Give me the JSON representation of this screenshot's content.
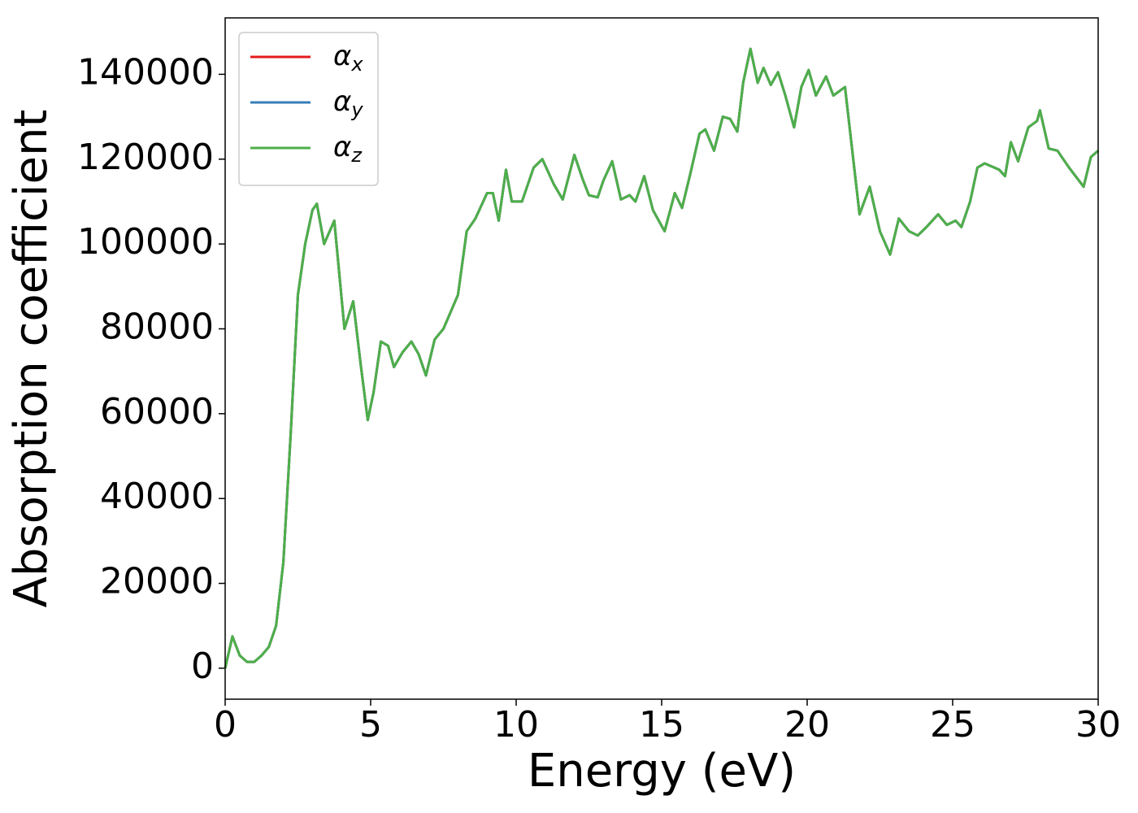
{
  "chart_data": {
    "type": "line",
    "xlabel": "Energy (eV)",
    "ylabel": "Absorption coefficient",
    "x": [
      0,
      0.25,
      0.5,
      0.75,
      1.0,
      1.25,
      1.5,
      1.75,
      2.0,
      2.25,
      2.5,
      2.75,
      3.0,
      3.15,
      3.4,
      3.75,
      4.1,
      4.4,
      4.65,
      4.9,
      5.1,
      5.35,
      5.6,
      5.8,
      6.1,
      6.4,
      6.65,
      6.9,
      7.2,
      7.5,
      7.75,
      8.0,
      8.3,
      8.6,
      9.0,
      9.2,
      9.4,
      9.65,
      9.85,
      10.2,
      10.6,
      10.9,
      11.3,
      11.6,
      12.0,
      12.3,
      12.5,
      12.8,
      13.0,
      13.3,
      13.6,
      13.9,
      14.1,
      14.4,
      14.7,
      15.1,
      15.45,
      15.7,
      16.0,
      16.3,
      16.5,
      16.8,
      17.1,
      17.35,
      17.6,
      17.8,
      18.05,
      18.3,
      18.5,
      18.75,
      19.0,
      19.25,
      19.55,
      19.8,
      20.05,
      20.3,
      20.65,
      20.9,
      21.3,
      21.5,
      21.8,
      22.15,
      22.5,
      22.85,
      23.15,
      23.5,
      23.8,
      24.1,
      24.5,
      24.8,
      25.1,
      25.3,
      25.6,
      25.85,
      26.1,
      26.6,
      26.8,
      27.0,
      27.25,
      27.6,
      27.9,
      28.0,
      28.3,
      28.6,
      29.0,
      29.5,
      29.75,
      30.0
    ],
    "series": [
      {
        "name": "αx",
        "color": "#e41a1c",
        "values": [
          0,
          7500,
          3000,
          1500,
          1500,
          3000,
          5000,
          10000,
          25000,
          55000,
          88000,
          100000,
          108000,
          109500,
          100000,
          105500,
          80000,
          86500,
          72000,
          58500,
          65000,
          77000,
          76000,
          71000,
          74500,
          77000,
          74000,
          69000,
          77500,
          80000,
          84000,
          88000,
          103000,
          106000,
          112000,
          112000,
          105500,
          117500,
          110000,
          110000,
          118000,
          120000,
          114000,
          110500,
          121000,
          115000,
          111500,
          111000,
          115000,
          119500,
          110500,
          111500,
          110000,
          116000,
          108000,
          103000,
          112000,
          108500,
          117000,
          126000,
          127000,
          122000,
          130000,
          129500,
          126500,
          138000,
          146000,
          138000,
          141500,
          137500,
          140500,
          135000,
          127500,
          137000,
          141000,
          135000,
          139500,
          135000,
          137000,
          125000,
          107000,
          113500,
          103000,
          97500,
          106000,
          103000,
          102000,
          104000,
          107000,
          104500,
          105500,
          104000,
          110000,
          118000,
          119000,
          117500,
          116000,
          124000,
          119500,
          127500,
          129000,
          131500,
          122500,
          122000,
          118000,
          113500,
          120500,
          122000
        ]
      },
      {
        "name": "αy",
        "color": "#377eb8",
        "values": [
          0,
          7500,
          3000,
          1500,
          1500,
          3000,
          5000,
          10000,
          25000,
          55000,
          88000,
          100000,
          108000,
          109500,
          100000,
          105500,
          80000,
          86500,
          72000,
          58500,
          65000,
          77000,
          76000,
          71000,
          74500,
          77000,
          74000,
          69000,
          77500,
          80000,
          84000,
          88000,
          103000,
          106000,
          112000,
          112000,
          105500,
          117500,
          110000,
          110000,
          118000,
          120000,
          114000,
          110500,
          121000,
          115000,
          111500,
          111000,
          115000,
          119500,
          110500,
          111500,
          110000,
          116000,
          108000,
          103000,
          112000,
          108500,
          117000,
          126000,
          127000,
          122000,
          130000,
          129500,
          126500,
          138000,
          146000,
          138000,
          141500,
          137500,
          140500,
          135000,
          127500,
          137000,
          141000,
          135000,
          139500,
          135000,
          137000,
          125000,
          107000,
          113500,
          103000,
          97500,
          106000,
          103000,
          102000,
          104000,
          107000,
          104500,
          105500,
          104000,
          110000,
          118000,
          119000,
          117500,
          116000,
          124000,
          119500,
          127500,
          129000,
          131500,
          122500,
          122000,
          118000,
          113500,
          120500,
          122000
        ]
      },
      {
        "name": "αz",
        "color": "#4daf4a",
        "values": [
          0,
          7500,
          3000,
          1500,
          1500,
          3000,
          5000,
          10000,
          25000,
          55000,
          88000,
          100000,
          108000,
          109500,
          100000,
          105500,
          80000,
          86500,
          72000,
          58500,
          65000,
          77000,
          76000,
          71000,
          74500,
          77000,
          74000,
          69000,
          77500,
          80000,
          84000,
          88000,
          103000,
          106000,
          112000,
          112000,
          105500,
          117500,
          110000,
          110000,
          118000,
          120000,
          114000,
          110500,
          121000,
          115000,
          111500,
          111000,
          115000,
          119500,
          110500,
          111500,
          110000,
          116000,
          108000,
          103000,
          112000,
          108500,
          117000,
          126000,
          127000,
          122000,
          130000,
          129500,
          126500,
          138000,
          146000,
          138000,
          141500,
          137500,
          140500,
          135000,
          127500,
          137000,
          141000,
          135000,
          139500,
          135000,
          137000,
          125000,
          107000,
          113500,
          103000,
          97500,
          106000,
          103000,
          102000,
          104000,
          107000,
          104500,
          105500,
          104000,
          110000,
          118000,
          119000,
          117500,
          116000,
          124000,
          119500,
          127500,
          129000,
          131500,
          122500,
          122000,
          118000,
          113500,
          120500,
          122000
        ]
      }
    ],
    "xlim": [
      0,
      30
    ],
    "xticks": [
      0,
      5,
      10,
      15,
      20,
      25,
      30
    ],
    "ylim": [
      -7300,
      153300
    ],
    "yticks": [
      0,
      20000,
      40000,
      60000,
      80000,
      100000,
      120000,
      140000
    ],
    "grid": false,
    "legend": "upper left"
  }
}
